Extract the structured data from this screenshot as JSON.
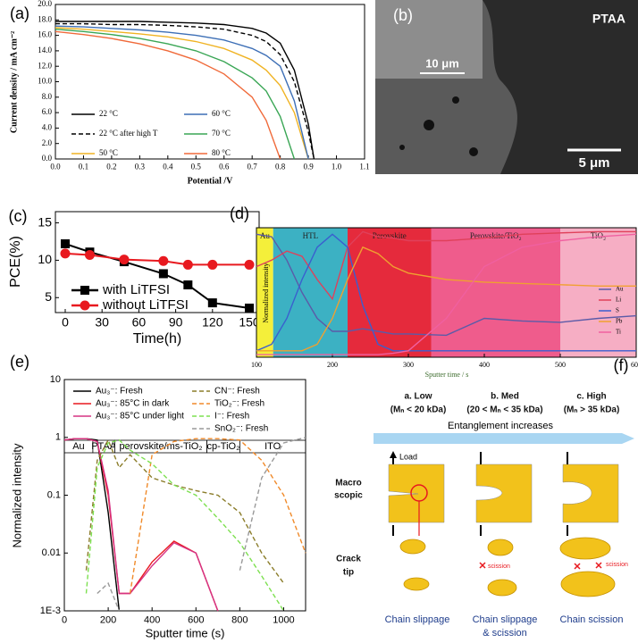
{
  "chart_data": [
    {
      "type": "line",
      "label": "(a)",
      "xlabel": "Potential /V",
      "ylabel": "Current density / mA cm⁻²",
      "x": [
        0,
        0.1,
        0.2,
        0.3,
        0.4,
        0.5,
        0.6,
        0.7,
        0.75,
        0.8,
        0.85,
        0.9,
        0.92
      ],
      "xlim": [
        0,
        1.1
      ],
      "xticks": [
        {
          "value": 0,
          "label": "0.0"
        },
        0.1,
        0.2,
        0.3,
        0.4,
        0.5,
        0.6,
        0.7,
        0.8,
        0.9,
        {
          "value": 1,
          "label": "1.0"
        },
        1.1
      ],
      "ylim": [
        0,
        20
      ],
      "yticks": [
        {
          "value": 0,
          "label": "0.0"
        },
        {
          "value": 2,
          "label": "2.0"
        },
        {
          "value": 4,
          "label": "4.0"
        },
        {
          "value": 6,
          "label": "6.0"
        },
        {
          "value": 8,
          "label": "8.0"
        },
        {
          "value": 10,
          "label": "10.0"
        },
        {
          "value": 12,
          "label": "12.0"
        },
        {
          "value": 14,
          "label": "14.0"
        },
        {
          "value": 16,
          "label": "16.0"
        },
        {
          "value": 18,
          "label": "18.0"
        },
        {
          "value": 20,
          "label": "20.0"
        }
      ],
      "series": [
        {
          "name": "22 °C",
          "color": "#000000",
          "values": [
            17.8,
            17.8,
            17.8,
            17.8,
            17.7,
            17.6,
            17.4,
            16.9,
            16.3,
            15.0,
            11.5,
            4.5,
            0
          ]
        },
        {
          "name": "22 °C after high T",
          "color": "#000000",
          "dash": "dashed",
          "values": [
            17.5,
            17.5,
            17.4,
            17.4,
            17.3,
            17.1,
            16.8,
            16.0,
            15.2,
            13.5,
            10.0,
            3.5,
            0
          ]
        },
        {
          "name": "50 °C",
          "color": "#f0b323",
          "values": [
            17.0,
            16.8,
            16.5,
            16.2,
            15.8,
            15.2,
            14.3,
            12.8,
            11.5,
            9.5,
            6.0,
            0,
            null
          ]
        },
        {
          "name": "60 °C",
          "color": "#3d6fb6",
          "values": [
            17.2,
            17.1,
            16.9,
            16.7,
            16.4,
            16.0,
            15.4,
            14.3,
            13.4,
            12.0,
            7.5,
            0,
            null
          ]
        },
        {
          "name": "70 °C",
          "color": "#3aa655",
          "values": [
            16.8,
            16.5,
            16.1,
            15.6,
            14.9,
            14.0,
            12.6,
            10.5,
            8.8,
            5.5,
            0,
            null,
            null
          ]
        },
        {
          "name": "80 °C",
          "color": "#f06a3a",
          "values": [
            16.5,
            16.1,
            15.6,
            14.9,
            14.0,
            12.8,
            11.0,
            8.0,
            5.0,
            0,
            null,
            null,
            null
          ]
        }
      ]
    },
    {
      "type": "line",
      "label": "(c)",
      "xlabel": "Time(h)",
      "ylabel": "PCE(%)",
      "x": [
        0,
        20,
        48,
        80,
        100,
        120,
        150
      ],
      "xlim": [
        -8,
        158
      ],
      "xticks": [
        0,
        30,
        60,
        90,
        120,
        150
      ],
      "ylim": [
        3,
        16.5
      ],
      "yticks": [
        5,
        10,
        15
      ],
      "legend": "lower left",
      "series": [
        {
          "name": "with LiTFSI",
          "color": "#000000",
          "marker": "square",
          "values": [
            12.2,
            11.1,
            9.8,
            8.2,
            6.7,
            4.3,
            3.6
          ]
        },
        {
          "name": "without LiTFSI",
          "color": "#e8191f",
          "marker": "circle",
          "values": [
            10.9,
            10.7,
            10.1,
            9.9,
            9.4,
            9.4,
            9.4
          ]
        }
      ]
    },
    {
      "type": "line",
      "label": "(d)",
      "xlabel": "Sputter time / s",
      "ylabel": "Normalized intensity",
      "x": [
        100,
        120,
        140,
        160,
        180,
        200,
        220,
        240,
        260,
        280,
        300,
        350,
        400,
        450,
        500,
        550,
        600
      ],
      "xlim": [
        100,
        600
      ],
      "xticks": [
        100,
        200,
        300,
        400,
        500,
        600
      ],
      "ylim": [
        0,
        1
      ],
      "legend": "lower right",
      "regions": [
        {
          "name": "Au",
          "start": 100,
          "end": 122,
          "color": "#f4ef3a"
        },
        {
          "name": "HTL",
          "start": 122,
          "end": 220,
          "color": "#3cb1c3"
        },
        {
          "name": "Perovskite",
          "start": 220,
          "end": 330,
          "color": "#e52a3c"
        },
        {
          "name": "Perovskite/TiO₂",
          "start": 330,
          "end": 500,
          "color": "#ef5c8c"
        },
        {
          "name": "TiO₂",
          "start": 500,
          "end": 600,
          "color": "#f6aec4"
        }
      ],
      "series": [
        {
          "name": "Au",
          "color": "#5b5ba8",
          "values": [
            0.95,
            0.93,
            0.75,
            0.5,
            0.3,
            0.2,
            0.2,
            0.22,
            0.2,
            0.18,
            0.18,
            0.17,
            0.3,
            0.28,
            0.27,
            0.3,
            0.32
          ]
        },
        {
          "name": "Li",
          "color": "#e0405a",
          "values": [
            0.7,
            0.75,
            0.82,
            0.78,
            0.6,
            0.45,
            0.85,
            0.97,
            0.93,
            0.92,
            0.9,
            0.9,
            0.92,
            0.95,
            0.96,
            0.97,
            0.97
          ]
        },
        {
          "name": "S",
          "color": "#3a5fcf",
          "values": [
            0.05,
            0.1,
            0.3,
            0.6,
            0.85,
            0.95,
            0.85,
            0.4,
            0.1,
            0.05,
            0.05,
            0.05,
            0.05,
            0.05,
            0.05,
            0.05,
            0.05
          ]
        },
        {
          "name": "Pb",
          "color": "#f0a030",
          "values": [
            0.05,
            0.05,
            0.05,
            0.05,
            0.1,
            0.3,
            0.6,
            0.85,
            0.8,
            0.7,
            0.65,
            0.6,
            0.58,
            0.57,
            0.56,
            0.55,
            0.55
          ]
        },
        {
          "name": "Ti",
          "color": "#f060a0",
          "values": [
            0.02,
            0.02,
            0.02,
            0.02,
            0.02,
            0.02,
            0.02,
            0.02,
            0.02,
            0.03,
            0.05,
            0.3,
            0.7,
            0.85,
            0.9,
            0.93,
            0.95
          ]
        }
      ]
    },
    {
      "type": "line",
      "label": "(e)",
      "xlabel": "Sputter time (s)",
      "ylabel": "Normalized intensity",
      "log_y": true,
      "x": [
        0,
        50,
        100,
        150,
        200,
        250,
        300,
        400,
        500,
        600,
        700,
        800,
        900,
        1000,
        1100
      ],
      "xlim": [
        0,
        1100
      ],
      "xticks": [
        0,
        200,
        400,
        600,
        800,
        1000
      ],
      "ylim": [
        0.001,
        10
      ],
      "yticks": [
        {
          "value": 0.001,
          "label": "1E-3"
        },
        0.01,
        0.1,
        1,
        10
      ],
      "legend": "upper",
      "regions": [
        {
          "name": "Au",
          "start": 0,
          "end": 130
        },
        {
          "name": "PTAA",
          "start": 130,
          "end": 230
        },
        {
          "name": "perovskite/ms-TiO₂",
          "start": 230,
          "end": 650
        },
        {
          "name": "cp-TiO₂",
          "start": 650,
          "end": 800
        },
        {
          "name": "ITO",
          "start": 800,
          "end": 1100
        }
      ],
      "series": [
        {
          "name": "Au₃⁻: Fresh",
          "color": "#000000",
          "values": [
            0.9,
            0.95,
            0.95,
            0.9,
            0.05,
            0.001,
            null,
            null,
            null,
            null,
            null,
            null,
            null,
            null,
            null
          ]
        },
        {
          "name": "Au₃⁻: 85°C in dark",
          "color": "#e8191f",
          "values": [
            0.9,
            0.95,
            0.95,
            0.85,
            0.1,
            0.002,
            0.002,
            0.007,
            0.016,
            0.01,
            0.001,
            null,
            null,
            null,
            null
          ]
        },
        {
          "name": "Au₃⁻: 85°C under light",
          "color": "#d63384",
          "values": [
            0.9,
            0.95,
            0.95,
            0.85,
            0.12,
            0.002,
            0.002,
            0.006,
            0.015,
            0.01,
            0.001,
            null,
            null,
            null,
            null
          ]
        },
        {
          "name": "CN⁻: Fresh",
          "color": "#8b7d2a",
          "dash": "dashed",
          "values": [
            null,
            null,
            0.005,
            0.4,
            0.9,
            0.3,
            0.5,
            0.2,
            0.15,
            0.12,
            0.1,
            0.05,
            0.01,
            0.003,
            null
          ]
        },
        {
          "name": "TiO₂⁻: Fresh",
          "color": "#f08a2a",
          "dash": "dashed",
          "values": [
            null,
            null,
            null,
            null,
            null,
            null,
            0.002,
            0.5,
            0.85,
            0.95,
            0.95,
            0.9,
            0.4,
            0.1,
            0.01
          ]
        },
        {
          "name": "I⁻: Fresh",
          "color": "#7de050",
          "dash": "dashed",
          "values": [
            null,
            null,
            0.002,
            0.3,
            0.8,
            0.9,
            0.6,
            0.35,
            0.15,
            0.1,
            0.04,
            0.015,
            0.004,
            0.001,
            null
          ]
        },
        {
          "name": "SnO₂⁻: Fresh",
          "color": "#999999",
          "dash": "dashed",
          "values": [
            null,
            null,
            null,
            0.002,
            0.003,
            0.001,
            null,
            null,
            null,
            null,
            null,
            0.005,
            0.2,
            0.8,
            1
          ]
        }
      ]
    }
  ],
  "panel_b": {
    "label": "(b)",
    "material": "PTAA",
    "scale_inset": "10 μm",
    "scale_main": "5 μm"
  },
  "panel_f": {
    "label": "(f)",
    "arrow": "Entanglement increases",
    "load": "Load",
    "scission": "scission",
    "rows": [
      [
        "Macro",
        "scopic"
      ],
      [
        "Crack",
        "tip"
      ]
    ],
    "columns": [
      {
        "title": "a. Low",
        "range": "(Mₙ < 20 kDa)",
        "caption": [
          "Chain slippage"
        ]
      },
      {
        "title": "b. Med",
        "range": "(20 < Mₙ < 35 kDa)",
        "caption": [
          "Chain slippage",
          "& scission"
        ]
      },
      {
        "title": "c. High",
        "range": "(Mₙ > 35 kDa)",
        "caption": [
          "Chain scission"
        ]
      }
    ]
  }
}
